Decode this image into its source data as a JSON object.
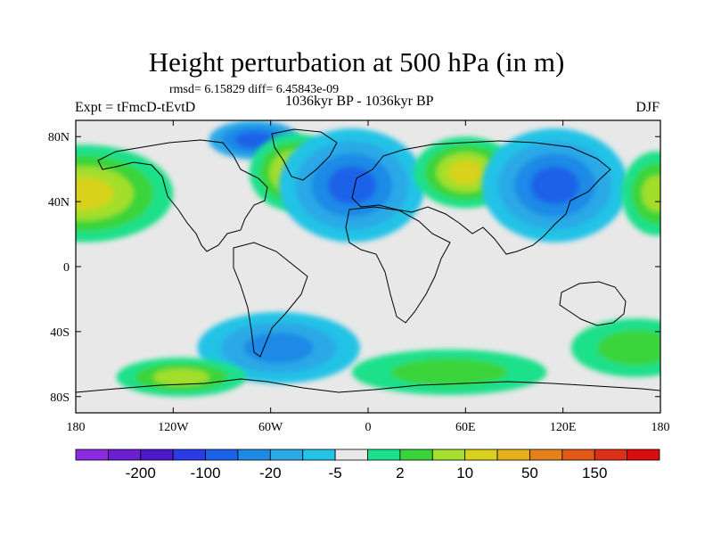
{
  "title": "Height perturbation at 500 hPa (in m)",
  "stats": "rmsd= 6.15829 diff= 6.45843e-09",
  "experiment": "Expt = tFmcD-tEvtD",
  "period": "1036kyr BP - 1036kyr BP",
  "season": "DJF",
  "axes": {
    "x_ticks": [
      {
        "lon": -180,
        "label": "180"
      },
      {
        "lon": -120,
        "label": "120W"
      },
      {
        "lon": -60,
        "label": "60W"
      },
      {
        "lon": 0,
        "label": "0"
      },
      {
        "lon": 60,
        "label": "60E"
      },
      {
        "lon": 120,
        "label": "120E"
      },
      {
        "lon": 180,
        "label": "180"
      }
    ],
    "y_ticks": [
      {
        "lat": 80,
        "label": "80N"
      },
      {
        "lat": 40,
        "label": "40N"
      },
      {
        "lat": 0,
        "label": "0"
      },
      {
        "lat": -40,
        "label": "40S"
      },
      {
        "lat": -80,
        "label": "80S"
      }
    ],
    "lon_range": [
      -180,
      180
    ],
    "lat_range": [
      -90,
      90
    ]
  },
  "colorbar": {
    "colors": [
      "#8b2be2",
      "#6a1fd1",
      "#4b19c9",
      "#2a3be6",
      "#1a62e8",
      "#1f8ae6",
      "#2aa9e6",
      "#23c3e6",
      "#e8e8e8",
      "#1ee08a",
      "#3ad43a",
      "#a3df2c",
      "#d8d21e",
      "#e6b018",
      "#e5801a",
      "#e35a18",
      "#de3018",
      "#d80d0d"
    ],
    "labels": [
      {
        "value": "-200",
        "after_index": 1
      },
      {
        "value": "-100",
        "after_index": 3
      },
      {
        "value": "-20",
        "after_index": 5
      },
      {
        "value": "-5",
        "after_index": 7
      },
      {
        "value": "2",
        "after_index": 9
      },
      {
        "value": "10",
        "after_index": 11
      },
      {
        "value": "50",
        "after_index": 13
      },
      {
        "value": "150",
        "after_index": 15
      }
    ]
  },
  "field_blobs": [
    {
      "lon": -175,
      "lat": 45,
      "rlon": 55,
      "rlat": 30,
      "levels": [
        "#1ee08a",
        "#3ad43a",
        "#a3df2c",
        "#d8d21e"
      ]
    },
    {
      "lon": -70,
      "lat": 78,
      "rlon": 28,
      "rlat": 12,
      "levels": [
        "#2aa9e6",
        "#1f8ae6",
        "#1a62e8"
      ]
    },
    {
      "lon": -45,
      "lat": 58,
      "rlon": 28,
      "rlat": 24,
      "levels": [
        "#1ee08a",
        "#3ad43a",
        "#a3df2c",
        "#d8d21e"
      ]
    },
    {
      "lon": -10,
      "lat": 50,
      "rlon": 45,
      "rlat": 35,
      "levels": [
        "#23c3e6",
        "#2aa9e6",
        "#1f8ae6",
        "#1a62e8"
      ]
    },
    {
      "lon": 60,
      "lat": 58,
      "rlon": 32,
      "rlat": 22,
      "levels": [
        "#1ee08a",
        "#3ad43a",
        "#a3df2c",
        "#d8d21e"
      ]
    },
    {
      "lon": 115,
      "lat": 50,
      "rlon": 45,
      "rlat": 35,
      "levels": [
        "#23c3e6",
        "#2aa9e6",
        "#1f8ae6",
        "#1a62e8"
      ]
    },
    {
      "lon": 178,
      "lat": 45,
      "rlon": 22,
      "rlat": 26,
      "levels": [
        "#1ee08a",
        "#3ad43a",
        "#a3df2c"
      ]
    },
    {
      "lon": -55,
      "lat": -50,
      "rlon": 50,
      "rlat": 22,
      "levels": [
        "#23c3e6",
        "#2aa9e6",
        "#1f8ae6"
      ]
    },
    {
      "lon": -115,
      "lat": -68,
      "rlon": 40,
      "rlat": 12,
      "levels": [
        "#1ee08a",
        "#3ad43a",
        "#a3df2c"
      ]
    },
    {
      "lon": 50,
      "lat": -65,
      "rlon": 60,
      "rlat": 14,
      "levels": [
        "#1ee08a",
        "#3ad43a"
      ]
    },
    {
      "lon": 165,
      "lat": -50,
      "rlon": 40,
      "rlat": 18,
      "levels": [
        "#1ee08a",
        "#3ad43a"
      ]
    }
  ]
}
